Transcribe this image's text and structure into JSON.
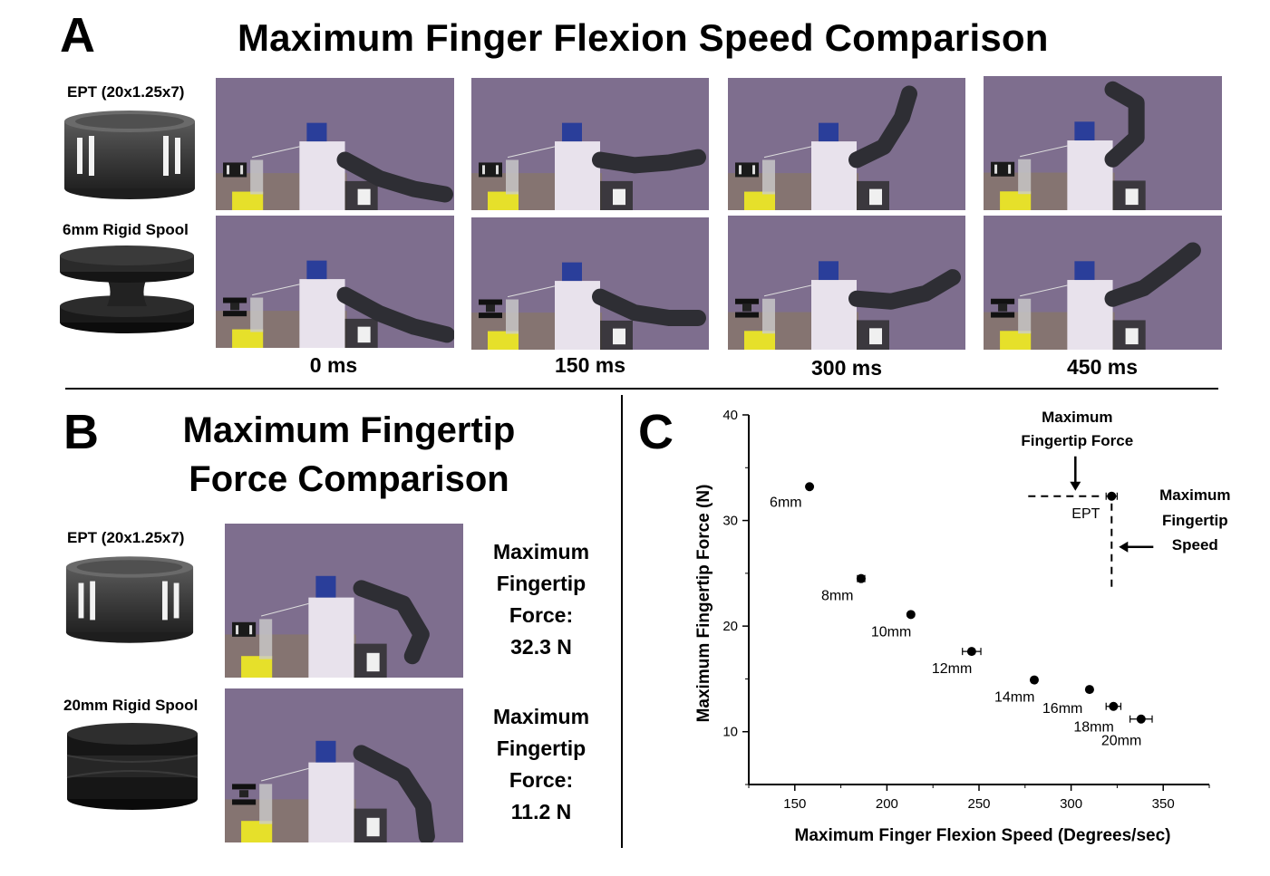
{
  "panel_a": {
    "letter": "A",
    "title": "Maximum Finger Flexion Speed Comparison",
    "rows": [
      {
        "label": "EPT (20x1.25x7)",
        "spool_icon": "ept-spool-icon"
      },
      {
        "label": "6mm Rigid Spool",
        "spool_icon": "rigid-spool-6mm-icon"
      }
    ],
    "times": [
      "0 ms",
      "150 ms",
      "300 ms",
      "450 ms"
    ]
  },
  "panel_b": {
    "letter": "B",
    "title_line1": "Maximum Fingertip",
    "title_line2": "Force Comparison",
    "rows": [
      {
        "label": "EPT (20x1.25x7)",
        "force_lines": [
          "Maximum",
          "Fingertip",
          "Force:",
          "32.3 N"
        ]
      },
      {
        "label": "20mm Rigid Spool",
        "force_lines": [
          "Maximum",
          "Fingertip",
          "Force:",
          "11.2 N"
        ]
      }
    ]
  },
  "panel_c": {
    "letter": "C",
    "annotation_force": [
      "Maximum",
      "Fingertip Force"
    ],
    "annotation_speed": [
      "Maximum",
      "Fingertip",
      "Speed"
    ]
  },
  "colors": {
    "photo_bg": "#7e6e8e",
    "finger": "#2e2e34",
    "base_yellow": "#e6e02a",
    "spool_dark": "#3a3a3a"
  },
  "chart_data": {
    "type": "scatter",
    "xlabel": "Maximum Finger Flexion Speed (Degrees/sec)",
    "ylabel": "Maximum Fingertip Force (N)",
    "xlim": [
      125,
      375
    ],
    "ylim": [
      5,
      40
    ],
    "xticks": [
      150,
      200,
      250,
      300,
      350
    ],
    "yticks": [
      10,
      20,
      30,
      40
    ],
    "points": [
      {
        "label": "6mm",
        "x": 158,
        "y": 33.2,
        "xerr": 0
      },
      {
        "label": "8mm",
        "x": 186,
        "y": 24.5,
        "xerr": 2
      },
      {
        "label": "10mm",
        "x": 213,
        "y": 21.1,
        "xerr": 1
      },
      {
        "label": "12mm",
        "x": 246,
        "y": 17.6,
        "xerr": 5
      },
      {
        "label": "14mm",
        "x": 280,
        "y": 14.9,
        "xerr": 0
      },
      {
        "label": "16mm",
        "x": 310,
        "y": 14.0,
        "xerr": 0
      },
      {
        "label": "18mm",
        "x": 323,
        "y": 12.4,
        "xerr": 4
      },
      {
        "label": "20mm",
        "x": 338,
        "y": 11.2,
        "xerr": 6
      },
      {
        "label": "EPT",
        "x": 322,
        "y": 32.3,
        "xerr": 3
      }
    ]
  }
}
